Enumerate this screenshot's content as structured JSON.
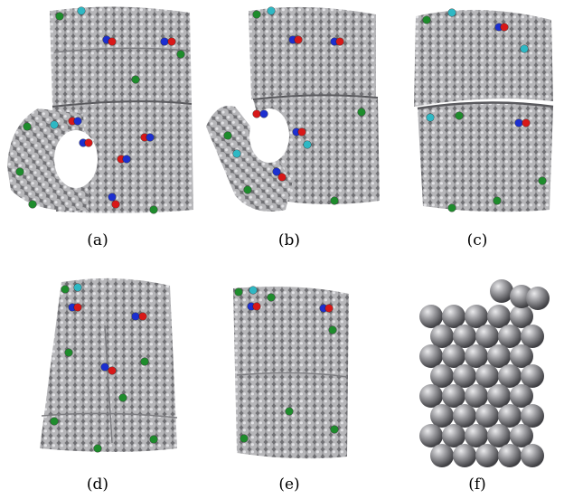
{
  "figure": {
    "panels": [
      {
        "id": "a",
        "caption": "(a)"
      },
      {
        "id": "b",
        "caption": "(b)"
      },
      {
        "id": "c",
        "caption": "(c)"
      },
      {
        "id": "d",
        "caption": "(d)"
      },
      {
        "id": "e",
        "caption": "(e)"
      },
      {
        "id": "f",
        "caption": "(f)"
      }
    ]
  },
  "colors": {
    "atom_gray": "#a9a9ab",
    "atom_dark": "#555558",
    "green": "#1e8c2c",
    "cyan": "#2eb8c4",
    "blue": "#1c2fd0",
    "red": "#d81818"
  }
}
